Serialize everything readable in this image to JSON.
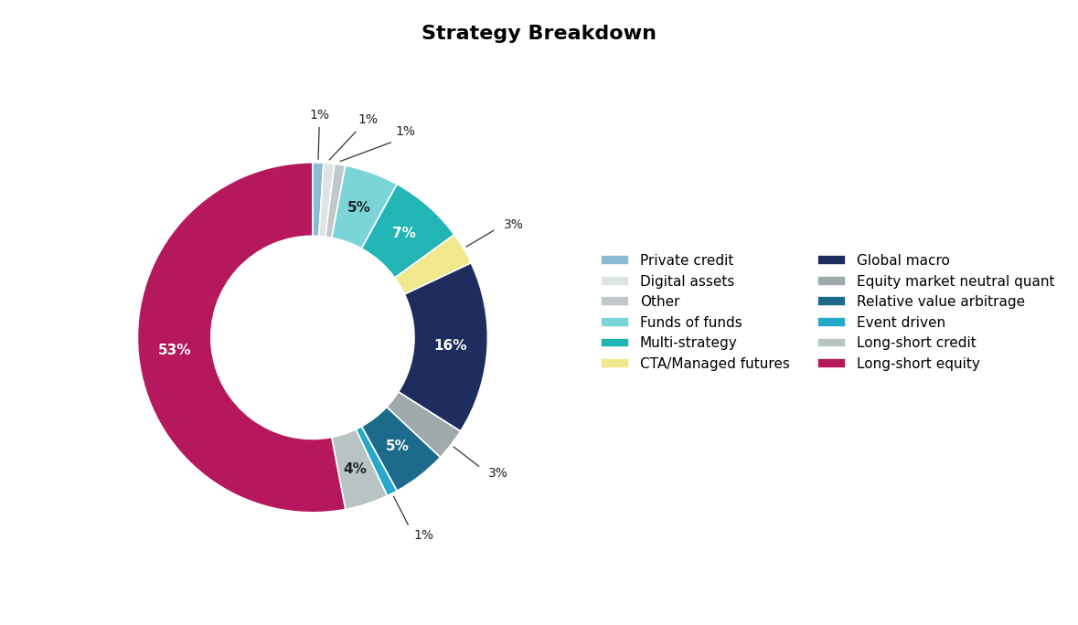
{
  "chart_data": {
    "type": "donut",
    "title": "Strategy Breakdown",
    "categories": [
      "Private credit",
      "Digital assets",
      "Other",
      "Funds of funds",
      "Multi-strategy",
      "CTA/Managed futures",
      "Global macro",
      "Equity market neutral quant",
      "Relative value arbitrage",
      "Event driven",
      "Long-short credit",
      "Long-short equity"
    ],
    "values": [
      1,
      1,
      1,
      5,
      7,
      3,
      16,
      3,
      5,
      1,
      4,
      53
    ],
    "value_labels": [
      "1%",
      "1%",
      "1%",
      "5%",
      "7%",
      "3%",
      "16%",
      "3%",
      "5%",
      "1%",
      "4%",
      "53%"
    ],
    "colors": [
      "#8bbcd4",
      "#dde4e4",
      "#c0c8ca",
      "#7ad4d8",
      "#22b5b5",
      "#f0e88a",
      "#1e2d5e",
      "#9eaaab",
      "#1d6b8a",
      "#26a8c8",
      "#b8c4c4",
      "#b5185d"
    ],
    "data_labels": true,
    "legend": "center right"
  }
}
